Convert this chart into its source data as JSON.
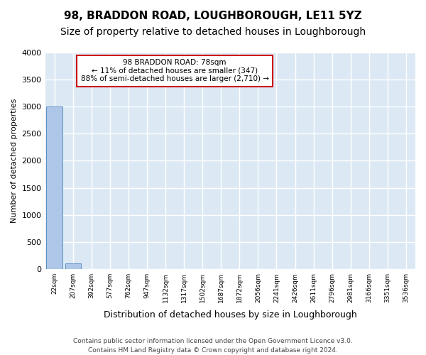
{
  "title": "98, BRADDON ROAD, LOUGHBOROUGH, LE11 5YZ",
  "subtitle": "Size of property relative to detached houses in Loughborough",
  "xlabel": "Distribution of detached houses by size in Loughborough",
  "ylabel": "Number of detached properties",
  "footnote1": "Contains HM Land Registry data © Crown copyright and database right 2024.",
  "footnote2": "Contains public sector information licensed under the Open Government Licence v3.0.",
  "bin_labels": [
    "22sqm",
    "207sqm",
    "392sqm",
    "577sqm",
    "762sqm",
    "947sqm",
    "1132sqm",
    "1317sqm",
    "1502sqm",
    "1687sqm",
    "1872sqm",
    "2056sqm",
    "2241sqm",
    "2426sqm",
    "2611sqm",
    "2796sqm",
    "2981sqm",
    "3166sqm",
    "3351sqm",
    "3536sqm"
  ],
  "bar_values": [
    3000,
    110,
    0,
    0,
    0,
    0,
    0,
    0,
    0,
    0,
    0,
    0,
    0,
    0,
    0,
    0,
    0,
    0,
    0,
    0
  ],
  "bar_color": "#aec6e8",
  "bar_edge_color": "#5a8fc2",
  "background_color": "#dce9f5",
  "grid_color": "#ffffff",
  "ylim": [
    0,
    4000
  ],
  "yticks": [
    0,
    500,
    1000,
    1500,
    2000,
    2500,
    3000,
    3500,
    4000
  ],
  "annotation_line1": "98 BRADDON ROAD: 78sqm",
  "annotation_line2": "← 11% of detached houses are smaller (347)",
  "annotation_line3": "88% of semi-detached houses are larger (2,710) →",
  "annotation_box_color": "#ffffff",
  "annotation_edge_color": "#cc0000",
  "title_fontsize": 11,
  "subtitle_fontsize": 10
}
